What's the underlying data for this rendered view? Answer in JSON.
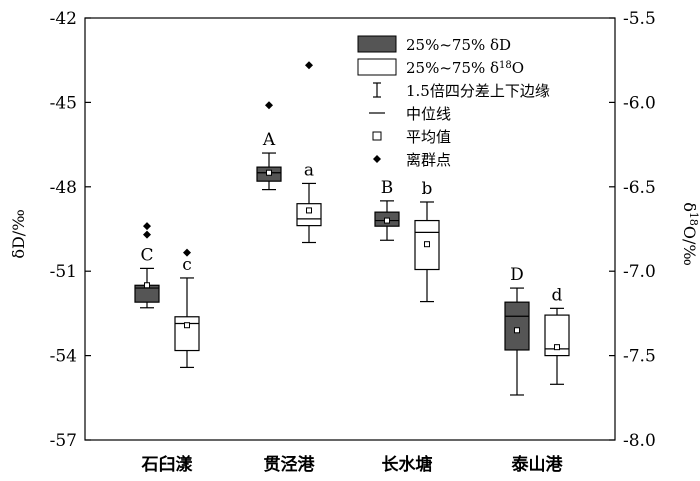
{
  "chart_data": {
    "type": "boxplot",
    "categories": [
      "石臼漾",
      "贯泾港",
      "长水塘",
      "泰山港"
    ],
    "y_left": {
      "label": "δD/‰",
      "range": [
        -57,
        -42
      ],
      "ticks": [
        "-42",
        "-45",
        "-48",
        "-51",
        "-54",
        "-57"
      ],
      "tick_values": [
        -42,
        -45,
        -48,
        -51,
        -54,
        -57
      ]
    },
    "y_right": {
      "label": "δ18O/‰",
      "range": [
        -8.0,
        -5.5
      ],
      "ticks": [
        "-5.5",
        "-6.0",
        "-6.5",
        "-7.0",
        "-7.5",
        "-8.0"
      ],
      "tick_values": [
        -5.5,
        -6.0,
        -6.5,
        -7.0,
        -7.5,
        -8.0
      ]
    },
    "series": [
      {
        "name": "25%~75% δD",
        "axis": "left",
        "color": "#555555",
        "boxes": [
          {
            "label": "C",
            "q1": -52.1,
            "median": -51.6,
            "q3": -51.5,
            "mean": -51.5,
            "whisker_low": -52.3,
            "whisker_high": -50.9,
            "outliers": [
              -49.4,
              -49.7
            ]
          },
          {
            "label": "A",
            "q1": -47.8,
            "median": -47.5,
            "q3": -47.3,
            "mean": -47.5,
            "whisker_low": -48.1,
            "whisker_high": -46.8,
            "outliers": [
              -45.1
            ]
          },
          {
            "label": "B",
            "q1": -49.4,
            "median": -49.2,
            "q3": -48.9,
            "mean": -49.2,
            "whisker_low": -49.9,
            "whisker_high": -48.5,
            "outliers": []
          },
          {
            "label": "D",
            "q1": -53.8,
            "median": -52.6,
            "q3": -52.1,
            "mean": -53.1,
            "whisker_low": -55.4,
            "whisker_high": -51.6,
            "outliers": []
          }
        ]
      },
      {
        "name": "25%~75% δ18O",
        "axis": "right",
        "color": "#ffffff",
        "boxes": [
          {
            "label": "c",
            "q1": -7.47,
            "median": -7.31,
            "q3": -7.27,
            "mean": -7.32,
            "whisker_low": -7.57,
            "whisker_high": -7.04,
            "outliers": [
              -6.89
            ]
          },
          {
            "label": "a",
            "q1": -6.73,
            "median": -6.69,
            "q3": -6.6,
            "mean": -6.64,
            "whisker_low": -6.83,
            "whisker_high": -6.48,
            "outliers": [
              -5.78
            ]
          },
          {
            "label": "b",
            "q1": -6.99,
            "median": -6.77,
            "q3": -6.7,
            "mean": -6.84,
            "whisker_low": -7.18,
            "whisker_high": -6.59,
            "outliers": []
          },
          {
            "label": "d",
            "q1": -7.5,
            "median": -7.46,
            "q3": -7.26,
            "mean": -7.45,
            "whisker_low": -7.67,
            "whisker_high": -7.22,
            "outliers": []
          }
        ]
      }
    ],
    "legend": {
      "placement": "top-right",
      "entries": [
        "25%~75% δD",
        "25%~75% δ18O",
        "1.5倍四分差上下边缘",
        "中位线",
        "平均值",
        "离群点"
      ]
    }
  }
}
